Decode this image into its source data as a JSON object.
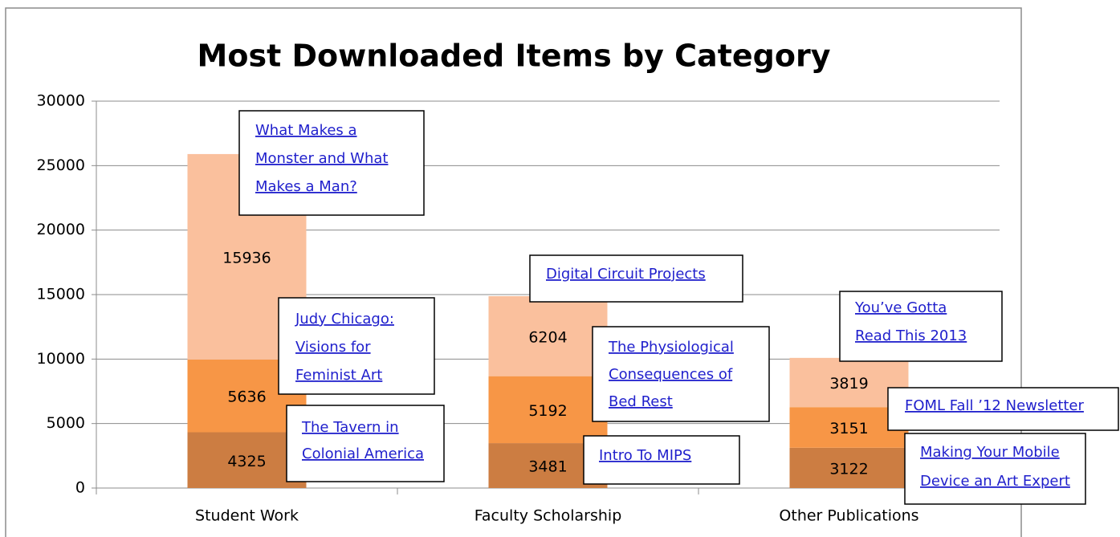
{
  "chart_data": {
    "type": "stacked_bar",
    "title": "Most Downloaded Items by Category",
    "categories": [
      "Student Work",
      "Faculty Scholarship",
      "Other Publications"
    ],
    "series": [
      {
        "color": "#cc7d42",
        "values": [
          4325,
          3481,
          3122
        ]
      },
      {
        "color": "#f79646",
        "values": [
          5636,
          5192,
          3151
        ]
      },
      {
        "color": "#fac09d",
        "values": [
          15936,
          6204,
          3819
        ]
      }
    ],
    "ylim": [
      0,
      30000
    ],
    "yticks": [
      0,
      5000,
      10000,
      15000,
      20000,
      25000,
      30000
    ],
    "grid": true,
    "annotations": [
      {
        "lines": [
          "What Makes a",
          "Monster and What",
          "Makes a Man?"
        ]
      },
      {
        "lines": [
          "Judy Chicago:",
          "Visions for",
          "Feminist Art"
        ]
      },
      {
        "lines": [
          "The Tavern in",
          "Colonial America"
        ]
      },
      {
        "lines": [
          "Digital Circuit Projects"
        ]
      },
      {
        "lines": [
          "The Physiological",
          "Consequences of",
          "Bed Rest"
        ]
      },
      {
        "lines": [
          "Intro To MIPS"
        ]
      },
      {
        "lines": [
          "You’ve Gotta",
          "Read This 2013"
        ]
      },
      {
        "lines": [
          "FOML Fall ’12 Newsletter"
        ]
      },
      {
        "lines": [
          "Making Your Mobile",
          "Device an Art Expert"
        ]
      }
    ]
  }
}
